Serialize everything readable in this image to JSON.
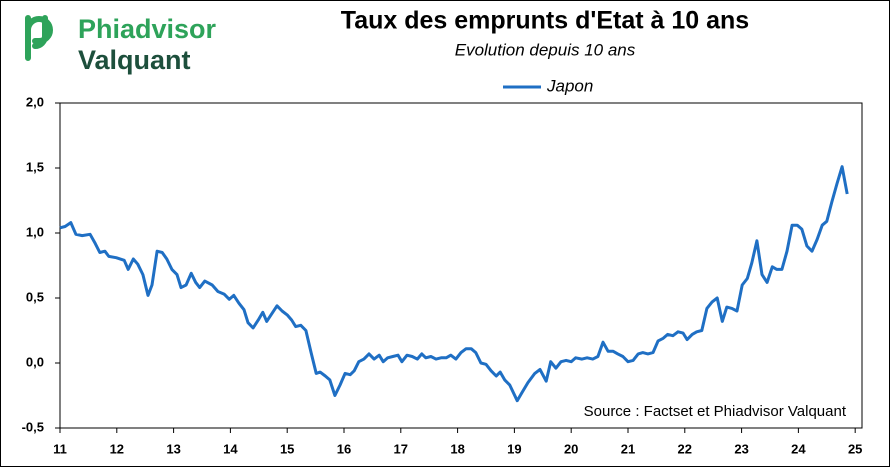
{
  "logo": {
    "line1": "Phiadvisor",
    "line2": "Valquant"
  },
  "chart_data": {
    "type": "line",
    "title": "Taux des emprunts d'Etat à 10 ans",
    "subtitle": "Evolution depuis 10 ans",
    "annotation": "Source : Factset et Phiadvisor Valquant",
    "legend": "top",
    "grid": false,
    "x": [
      11.0,
      11.09,
      11.19,
      11.28,
      11.39,
      11.53,
      11.62,
      11.7,
      11.79,
      11.86,
      11.99,
      12.13,
      12.2,
      12.29,
      12.37,
      12.46,
      12.55,
      12.62,
      12.71,
      12.8,
      12.88,
      12.97,
      13.06,
      13.13,
      13.22,
      13.31,
      13.39,
      13.46,
      13.55,
      13.68,
      13.78,
      13.89,
      13.98,
      14.06,
      14.15,
      14.24,
      14.31,
      14.4,
      14.49,
      14.57,
      14.64,
      14.73,
      14.82,
      14.91,
      15.0,
      15.08,
      15.15,
      15.24,
      15.33,
      15.42,
      15.51,
      15.58,
      15.67,
      15.75,
      15.84,
      15.93,
      16.02,
      16.11,
      16.18,
      16.26,
      16.35,
      16.44,
      16.53,
      16.62,
      16.69,
      16.77,
      16.86,
      16.95,
      17.02,
      17.11,
      17.2,
      17.29,
      17.37,
      17.44,
      17.53,
      17.62,
      17.71,
      17.8,
      17.88,
      17.97,
      18.06,
      18.15,
      18.24,
      18.32,
      18.41,
      18.5,
      18.59,
      18.68,
      18.75,
      18.83,
      18.92,
      19.05,
      19.13,
      19.24,
      19.36,
      19.45,
      19.56,
      19.64,
      19.73,
      19.82,
      19.91,
      20.0,
      20.08,
      20.19,
      20.28,
      20.38,
      20.47,
      20.56,
      20.65,
      20.74,
      20.82,
      20.91,
      21.0,
      21.09,
      21.18,
      21.26,
      21.35,
      21.44,
      21.53,
      21.62,
      21.7,
      21.79,
      21.88,
      21.97,
      22.04,
      22.13,
      22.21,
      22.3,
      22.39,
      22.48,
      22.57,
      22.66,
      22.74,
      22.83,
      22.92,
      23.01,
      23.1,
      23.18,
      23.27,
      23.36,
      23.45,
      23.54,
      23.62,
      23.71,
      23.8,
      23.89,
      23.98,
      24.06,
      24.15,
      24.24,
      24.33,
      24.42,
      24.5,
      24.59,
      24.68,
      24.77,
      24.86
    ],
    "series": [
      {
        "name": "Japon",
        "color": "#1f6fc4",
        "values": [
          1.04,
          1.05,
          1.08,
          0.99,
          0.98,
          0.99,
          0.92,
          0.85,
          0.86,
          0.82,
          0.81,
          0.79,
          0.72,
          0.8,
          0.76,
          0.68,
          0.52,
          0.6,
          0.86,
          0.85,
          0.8,
          0.72,
          0.68,
          0.58,
          0.6,
          0.69,
          0.62,
          0.58,
          0.63,
          0.6,
          0.55,
          0.53,
          0.49,
          0.52,
          0.46,
          0.41,
          0.31,
          0.27,
          0.33,
          0.39,
          0.32,
          0.38,
          0.44,
          0.4,
          0.37,
          0.33,
          0.28,
          0.29,
          0.25,
          0.08,
          -0.08,
          -0.07,
          -0.1,
          -0.13,
          -0.25,
          -0.17,
          -0.08,
          -0.09,
          -0.06,
          0.01,
          0.03,
          0.07,
          0.03,
          0.06,
          0.01,
          0.04,
          0.05,
          0.06,
          0.01,
          0.06,
          0.05,
          0.03,
          0.07,
          0.04,
          0.05,
          0.03,
          0.04,
          0.04,
          0.06,
          0.03,
          0.08,
          0.11,
          0.11,
          0.08,
          0.0,
          -0.01,
          -0.06,
          -0.1,
          -0.07,
          -0.13,
          -0.17,
          -0.29,
          -0.23,
          -0.15,
          -0.08,
          -0.05,
          -0.14,
          0.01,
          -0.04,
          0.01,
          0.02,
          0.01,
          0.04,
          0.03,
          0.04,
          0.03,
          0.05,
          0.16,
          0.09,
          0.09,
          0.07,
          0.05,
          0.01,
          0.02,
          0.07,
          0.08,
          0.07,
          0.08,
          0.17,
          0.19,
          0.22,
          0.21,
          0.24,
          0.23,
          0.18,
          0.22,
          0.24,
          0.25,
          0.42,
          0.47,
          0.5,
          0.32,
          0.43,
          0.42,
          0.4,
          0.6,
          0.65,
          0.77,
          0.94,
          0.68,
          0.62,
          0.74,
          0.72,
          0.72,
          0.86,
          1.06,
          1.06,
          1.03,
          0.9,
          0.86,
          0.95,
          1.06,
          1.09,
          1.24,
          1.38,
          1.51,
          1.3
        ]
      }
    ],
    "xlim": [
      11,
      25.12
    ],
    "xticks": [
      11,
      12,
      13,
      14,
      15,
      16,
      17,
      18,
      19,
      20,
      21,
      22,
      23,
      24,
      25
    ],
    "ylim": [
      -0.5,
      2.0
    ],
    "yticks": [
      {
        "value": -0.5,
        "label": "-0,5"
      },
      {
        "value": 0,
        "label": "0,0"
      },
      {
        "value": 0.5,
        "label": "0,5"
      },
      {
        "value": 1.0,
        "label": "1,0"
      },
      {
        "value": 1.5,
        "label": "1,5"
      },
      {
        "value": 2.0,
        "label": "2,0"
      }
    ]
  }
}
